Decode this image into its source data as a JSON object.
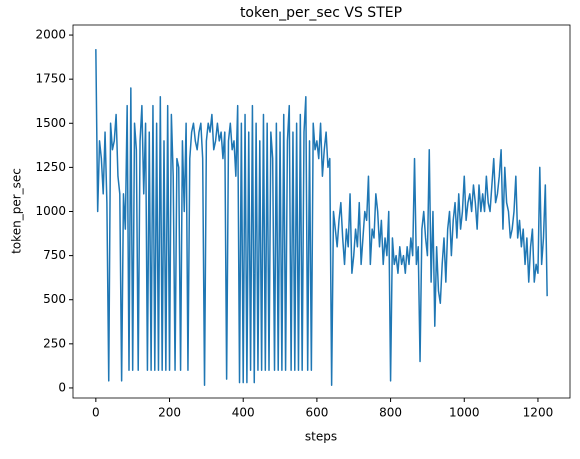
{
  "chart_data": {
    "type": "line",
    "title": "token_per_sec VS STEP",
    "x_label": "steps",
    "y_label": "token_per_sec",
    "x": [
      0,
      5,
      10,
      15,
      20,
      25,
      30,
      35,
      40,
      45,
      50,
      55,
      60,
      65,
      70,
      75,
      80,
      85,
      90,
      95,
      100,
      105,
      110,
      115,
      120,
      125,
      130,
      135,
      140,
      145,
      150,
      155,
      160,
      165,
      170,
      175,
      180,
      185,
      190,
      195,
      200,
      205,
      210,
      215,
      220,
      225,
      230,
      235,
      240,
      245,
      250,
      255,
      260,
      265,
      270,
      275,
      280,
      285,
      290,
      295,
      300,
      305,
      310,
      315,
      320,
      325,
      330,
      335,
      340,
      345,
      350,
      355,
      360,
      365,
      370,
      375,
      380,
      385,
      390,
      395,
      400,
      405,
      410,
      415,
      420,
      425,
      430,
      435,
      440,
      445,
      450,
      455,
      460,
      465,
      470,
      475,
      480,
      485,
      490,
      495,
      500,
      505,
      510,
      515,
      520,
      525,
      530,
      535,
      540,
      545,
      550,
      555,
      560,
      565,
      570,
      575,
      580,
      585,
      590,
      595,
      600,
      605,
      610,
      615,
      620,
      625,
      630,
      635,
      640,
      645,
      650,
      655,
      660,
      665,
      670,
      675,
      680,
      685,
      690,
      695,
      700,
      705,
      710,
      715,
      720,
      725,
      730,
      735,
      740,
      745,
      750,
      755,
      760,
      765,
      770,
      775,
      780,
      785,
      790,
      795,
      800,
      805,
      810,
      815,
      820,
      825,
      830,
      835,
      840,
      845,
      850,
      855,
      860,
      865,
      870,
      875,
      880,
      885,
      890,
      895,
      900,
      905,
      910,
      915,
      920,
      925,
      930,
      935,
      940,
      945,
      950,
      955,
      960,
      965,
      970,
      975,
      980,
      985,
      990,
      995,
      1000,
      1005,
      1010,
      1015,
      1020,
      1025,
      1030,
      1035,
      1040,
      1045,
      1050,
      1055,
      1060,
      1065,
      1070,
      1075,
      1080,
      1085,
      1090,
      1095,
      1100,
      1105,
      1110,
      1115,
      1120,
      1125,
      1130,
      1135,
      1140,
      1145,
      1150,
      1155,
      1160,
      1165,
      1170,
      1175,
      1180,
      1185,
      1190,
      1195,
      1200,
      1205,
      1210,
      1215,
      1220,
      1225
    ],
    "series": [
      {
        "name": "token_per_sec",
        "color": "#1f77b4",
        "values": [
          1920,
          1000,
          1400,
          1300,
          1100,
          1450,
          1050,
          40,
          1500,
          1350,
          1400,
          1550,
          1200,
          1100,
          40,
          1100,
          900,
          1600,
          100,
          1700,
          100,
          1500,
          1350,
          100,
          1400,
          1600,
          1100,
          1500,
          100,
          1450,
          100,
          1600,
          100,
          1500,
          100,
          1650,
          100,
          1400,
          100,
          1600,
          100,
          1550,
          1200,
          100,
          1300,
          1250,
          100,
          1400,
          1000,
          1500,
          100,
          1300,
          1450,
          1500,
          1400,
          1350,
          1450,
          1500,
          1300,
          15,
          1400,
          1500,
          1450,
          1550,
          1350,
          1400,
          1500,
          1400,
          1450,
          1300,
          1450,
          50,
          1400,
          1500,
          1350,
          1400,
          1200,
          1600,
          30,
          1500,
          30,
          1550,
          30,
          1450,
          100,
          1600,
          30,
          1500,
          100,
          1400,
          100,
          1550,
          100,
          1500,
          100,
          1450,
          1300,
          100,
          1500,
          100,
          1450,
          100,
          1550,
          100,
          1400,
          1600,
          100,
          1450,
          100,
          1500,
          100,
          1550,
          100,
          1450,
          1650,
          100,
          1400,
          100,
          1500,
          1350,
          1400,
          1300,
          1500,
          1200,
          1350,
          1450,
          1250,
          1300,
          15,
          1000,
          900,
          800,
          950,
          1050,
          850,
          700,
          900,
          800,
          1100,
          650,
          750,
          900,
          800,
          1050,
          700,
          850,
          1000,
          950,
          1200,
          700,
          900,
          850,
          1100,
          1000,
          800,
          950,
          700,
          850,
          750,
          1000,
          40,
          850,
          700,
          750,
          650,
          800,
          700,
          750,
          650,
          800,
          700,
          850,
          750,
          1300,
          700,
          800,
          150,
          900,
          1000,
          850,
          750,
          1350,
          600,
          1000,
          350,
          800,
          550,
          480,
          700,
          850,
          600,
          900,
          1000,
          750,
          950,
          1050,
          850,
          1100,
          900,
          1000,
          1200,
          950,
          1050,
          1100,
          1000,
          1150,
          1050,
          900,
          1150,
          1000,
          1100,
          1000,
          1200,
          1050,
          1000,
          1150,
          1300,
          1050,
          1100,
          1200,
          1350,
          900,
          1250,
          1050,
          1000,
          850,
          900,
          1000,
          1200,
          850,
          950,
          800,
          900,
          700,
          850,
          600,
          800,
          900,
          600,
          700,
          650,
          1250,
          700,
          850,
          1150,
          520
        ]
      }
    ],
    "xlim": [
      -62,
      1287
    ],
    "xticks": [
      0,
      200,
      400,
      600,
      800,
      1000,
      1200
    ],
    "ylim": [
      -57,
      2057
    ],
    "yticks": [
      0,
      250,
      500,
      750,
      1000,
      1250,
      1500,
      1750,
      2000
    ],
    "grid": false
  }
}
